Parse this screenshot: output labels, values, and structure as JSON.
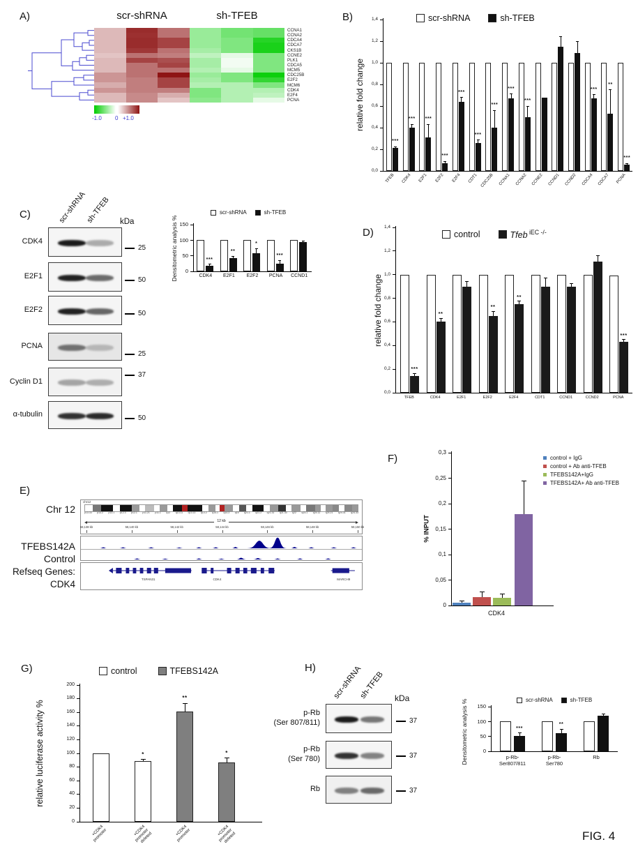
{
  "figure_label": "FIG. 4",
  "panel_a": {
    "label": "A)",
    "col_group_labels": [
      "scr-shRNA",
      "sh-TFEB"
    ],
    "colorbar_labels": [
      "-1.0",
      "0",
      "+1.0"
    ],
    "chart_data": {
      "type": "heatmap",
      "rows": [
        "CCNA1",
        "CCNA2",
        "CDCA4",
        "CDCA7",
        "CKS1B",
        "CCNE2",
        "PLK1",
        "CDCA5",
        "MCM5",
        "CDC25B",
        "E2F2",
        "MCM6",
        "CDK4",
        "E2F4",
        "PCNA"
      ],
      "columns": [
        "scr-shRNA 1",
        "scr-shRNA 2",
        "scr-shRNA 3",
        "sh-TFEB 1",
        "sh-TFEB 2",
        "sh-TFEB 3"
      ],
      "values": [
        [
          0.3,
          0.9,
          0.6,
          -0.4,
          -0.55,
          -0.6
        ],
        [
          0.3,
          0.88,
          0.6,
          -0.4,
          -0.55,
          -0.6
        ],
        [
          0.3,
          0.9,
          0.8,
          -0.4,
          -0.5,
          -0.85
        ],
        [
          0.3,
          0.9,
          0.8,
          -0.4,
          -0.5,
          -0.9
        ],
        [
          0.3,
          0.85,
          0.6,
          -0.35,
          -0.5,
          -0.9
        ],
        [
          0.25,
          0.6,
          0.55,
          -0.25,
          -0.1,
          -0.5
        ],
        [
          0.3,
          0.8,
          0.75,
          -0.35,
          -0.05,
          -0.5
        ],
        [
          0.3,
          0.6,
          0.8,
          -0.35,
          -0.05,
          -0.5
        ],
        [
          0.3,
          0.6,
          0.6,
          -0.3,
          -0.1,
          -0.5
        ],
        [
          0.45,
          0.6,
          1.0,
          -0.4,
          -0.5,
          -0.95
        ],
        [
          0.45,
          0.55,
          0.8,
          -0.35,
          -0.5,
          -0.8
        ],
        [
          0.35,
          0.55,
          0.8,
          -0.3,
          -0.3,
          -0.5
        ],
        [
          0.45,
          0.55,
          0.55,
          -0.5,
          -0.3,
          -0.3
        ],
        [
          0.3,
          0.5,
          0.35,
          -0.5,
          -0.3,
          -0.25
        ],
        [
          0.3,
          0.5,
          0.25,
          -0.45,
          -0.3,
          -0.1
        ]
      ],
      "vmin": -1.0,
      "vmax": 1.0,
      "neg_color": "#00cc00",
      "pos_color": "#8e1414"
    }
  },
  "panel_b": {
    "label": "B)",
    "legend": [
      {
        "label": "scr-shRNA",
        "fill": "#ffffff"
      },
      {
        "label": "sh-TFEB",
        "fill": "#111111"
      }
    ],
    "chart_data": {
      "type": "bar",
      "ylabel": "relative fold change",
      "ymax": 1.4,
      "ytick_labels": [
        "0,0",
        "0,2",
        "0,4",
        "0,6",
        "0,8",
        "1,0",
        "1,2",
        "1,4"
      ],
      "categories": [
        "TFEB",
        "CDK4",
        "E2F1",
        "E2F2",
        "E2F4",
        "CDT1",
        "CDC25B",
        "CCNA1",
        "CCNA2",
        "CCNE2",
        "CCND1",
        "CCND2",
        "CDCA4",
        "CDCA7",
        "PCNA"
      ],
      "series": [
        {
          "name": "scr-shRNA",
          "fill": "#ffffff",
          "values": [
            1,
            1,
            1,
            1,
            1,
            1,
            1,
            1,
            1,
            1,
            1,
            1,
            1,
            1,
            1
          ]
        },
        {
          "name": "sh-TFEB",
          "fill": "#111111",
          "values": [
            0.21,
            0.4,
            0.31,
            0.07,
            0.64,
            0.26,
            0.4,
            0.67,
            0.5,
            0.68,
            1.15,
            1.09,
            0.67,
            0.53,
            0.06
          ],
          "errors": [
            0.015,
            0.03,
            0.12,
            0.02,
            0.04,
            0.025,
            0.16,
            0.04,
            0.1,
            0,
            0.09,
            0.11,
            0.035,
            0.22,
            0.01
          ],
          "sig": [
            "***",
            "***",
            "***",
            "***",
            "***",
            "***",
            "***",
            "***",
            "***",
            "",
            "",
            "",
            "***",
            "**",
            "***"
          ]
        }
      ]
    }
  },
  "panel_c": {
    "label": "C)",
    "kda_label": "kDa",
    "lane_labels": [
      "scr-shRNA",
      "sh-TFEB"
    ],
    "blots": [
      {
        "name_lines": [
          "CDK4"
        ],
        "marker": "25",
        "bands": [
          0.95,
          0.32
        ],
        "bg": "#f5f5f5"
      },
      {
        "name_lines": [
          "E2F1"
        ],
        "marker": "50",
        "bands": [
          0.92,
          0.6
        ],
        "bg": "#f5f5f5"
      },
      {
        "name_lines": [
          "E2F2"
        ],
        "marker": "50",
        "bands": [
          0.92,
          0.62
        ],
        "bg": "#f5f5f5"
      },
      {
        "name_lines": [
          "PCNA"
        ],
        "marker": "25",
        "bands": [
          0.55,
          0.22
        ],
        "bg": "#e6e6e6"
      },
      {
        "name_lines": [
          "Cyclin D1"
        ],
        "marker": "37",
        "bands": [
          0.34,
          0.3
        ],
        "bg": "#f2f2f2"
      },
      {
        "name_lines": [
          "α-tubulin"
        ],
        "marker": "50",
        "bands": [
          0.85,
          0.88
        ],
        "bg": "#f5f5f5"
      }
    ],
    "densitometry": {
      "legend": [
        {
          "label": "scr-shRNA",
          "fill": "#ffffff"
        },
        {
          "label": "sh-TFEB",
          "fill": "#111111"
        }
      ],
      "chart_data": {
        "type": "bar",
        "ylabel": "Densitometric analysis %",
        "ymax": 150,
        "ytick_labels": [
          "0",
          "50",
          "100",
          "150"
        ],
        "categories": [
          "CDK4",
          "E2F1",
          "E2F2",
          "PCNA",
          "CCND1"
        ],
        "series": [
          {
            "name": "scr-shRNA",
            "fill": "#ffffff",
            "values": [
              100,
              100,
              100,
              100,
              100
            ]
          },
          {
            "name": "sh-TFEB",
            "fill": "#111111",
            "values": [
              18,
              42,
              58,
              25,
              93
            ],
            "errors": [
              5,
              7,
              15,
              10,
              4
            ],
            "sig": [
              "***",
              "**",
              "*",
              "***",
              ""
            ]
          }
        ]
      }
    }
  },
  "panel_d": {
    "label": "D)",
    "legend": [
      {
        "label": "control",
        "fill": "#ffffff"
      },
      {
        "label_italic": "Tfeb",
        "label_sup": "iEC -/-",
        "fill": "#1a1a1a"
      }
    ],
    "chart_data": {
      "type": "bar",
      "ylabel": "relative fold change",
      "ymax": 1.4,
      "ytick_labels": [
        "0,0",
        "0,2",
        "0,4",
        "0,6",
        "0,8",
        "1,0",
        "1,2",
        "1,4"
      ],
      "categories": [
        "TFEB",
        "CDK4",
        "E2F1",
        "E2F2",
        "E2F4",
        "CDT1",
        "CCND1",
        "CCND2",
        "PCNA"
      ],
      "series": [
        {
          "name": "control",
          "fill": "#ffffff",
          "values": [
            1,
            1,
            1,
            1,
            1,
            1,
            1,
            1,
            0.99
          ]
        },
        {
          "name": "Tfeb iEC -/-",
          "fill": "#1a1a1a",
          "values": [
            0.14,
            0.6,
            0.9,
            0.65,
            0.75,
            0.9,
            0.9,
            1.11,
            0.43
          ],
          "errors": [
            0.025,
            0.03,
            0.04,
            0.04,
            0.025,
            0.07,
            0.025,
            0.05,
            0.02
          ],
          "sig": [
            "***",
            "**",
            "",
            "**",
            "**",
            "",
            "",
            "",
            "***"
          ]
        }
      ]
    }
  },
  "panel_e": {
    "label": "E)",
    "left_labels": [
      "Chr 12",
      "TFEBS142A",
      "Control",
      "Refseq Genes:",
      "CDK4"
    ],
    "browser": {
      "chrom_label": "chr12",
      "scale_label": "12 kb",
      "ruler_ticks": [
        "58,138 kb",
        "58,140 kb",
        "58,142 kb",
        "58,144 kb",
        "58,146 kb",
        "58,148 kb",
        "58,150 kb"
      ],
      "band_labels": [
        "p13.33",
        "p13.2",
        "p13.1",
        "p12.3",
        "p12.1",
        "p11.21",
        "p11.1",
        "q12",
        "q13.11",
        "q13.13",
        "q13.2",
        "q14.1",
        "q14.3",
        "q15",
        "q21.1",
        "q21.2",
        "q21.31",
        "q21.33",
        "q22",
        "q23.1",
        "q24.11",
        "q24.21",
        "q24.31",
        "q24.33"
      ],
      "genes": [
        {
          "name": "TSPAN31"
        },
        {
          "name": "CDK4"
        },
        {
          "name": "MARCH9"
        }
      ],
      "track_color": "#00008b"
    }
  },
  "panel_f": {
    "label": "F)",
    "chart_data": {
      "type": "bar",
      "ylabel": "% INPUT",
      "ymax": 0.3,
      "ytick_labels": [
        "0",
        "0,05",
        "0,1",
        "0,15",
        "0,2",
        "0,25",
        "0,3"
      ],
      "categories": [
        "CDK4"
      ],
      "series": [
        {
          "name": "control + IgG",
          "fill": "#4f81bd",
          "values": [
            0.005
          ],
          "errors": [
            0.004
          ]
        },
        {
          "name": "control + Ab anti-TFEB",
          "fill": "#c0504d",
          "values": [
            0.017
          ],
          "errors": [
            0.01
          ]
        },
        {
          "name": "TFEBS142A+IgG",
          "fill": "#9bbb59",
          "values": [
            0.015
          ],
          "errors": [
            0.008
          ]
        },
        {
          "name": "TFEBS142A+ Ab anti-TFEB",
          "fill": "#8064a2",
          "values": [
            0.18
          ],
          "errors": [
            0.065
          ]
        }
      ]
    }
  },
  "panel_g": {
    "label": "G)",
    "legend": [
      {
        "label": "control",
        "fill": "#ffffff"
      },
      {
        "label": "TFEBS142A",
        "fill": "#7f7f7f"
      }
    ],
    "chart_data": {
      "type": "bar",
      "ylabel": "relative luciferase activity %",
      "ymax": 200,
      "ytick_labels": [
        "0",
        "20",
        "40",
        "60",
        "80",
        "100",
        "120",
        "140",
        "160",
        "180",
        "200"
      ],
      "categories": [
        "+CDK4\npromoter",
        "+CDK4\npromoter\ndeleted",
        "+CDK4\npromoter",
        "+CDK4\npromoter\ndeleted"
      ],
      "series": [
        {
          "name": "luciferase",
          "fills": [
            "#ffffff",
            "#ffffff",
            "#7f7f7f",
            "#7f7f7f"
          ],
          "values": [
            100,
            89,
            161,
            87
          ],
          "errors": [
            0,
            2,
            12,
            6
          ],
          "sig": [
            "",
            "*",
            "**",
            "*"
          ]
        }
      ]
    }
  },
  "panel_h": {
    "label": "H)",
    "kda_label": "kDa",
    "lane_labels": [
      "scr-shRNA",
      "sh-TFEB"
    ],
    "blots": [
      {
        "name_lines": [
          "p-Rb",
          "(Ser 807/811)"
        ],
        "marker": "37",
        "bands": [
          0.95,
          0.55
        ],
        "bg": "#f5f5f5"
      },
      {
        "name_lines": [
          "p-Rb",
          "(Ser 780)"
        ],
        "marker": "37",
        "bands": [
          0.85,
          0.5
        ],
        "bg": "#f5f5f5"
      },
      {
        "name_lines": [
          "Rb"
        ],
        "marker": "37",
        "bands": [
          0.5,
          0.6
        ],
        "bg": "#f0f0f0"
      }
    ],
    "densitometry": {
      "legend": [
        {
          "label": "scr-shRNA",
          "fill": "#ffffff"
        },
        {
          "label": "sh-TFEB",
          "fill": "#111111"
        }
      ],
      "chart_data": {
        "type": "bar",
        "ylabel": "Densitometric analysis %",
        "ymax": 150,
        "ytick_labels": [
          "0",
          "50",
          "100",
          "150"
        ],
        "categories": [
          "p-Rb-\nSer807/811",
          "p-Rb-\nSer780",
          "Rb"
        ],
        "series": [
          {
            "name": "scr-shRNA",
            "fill": "#ffffff",
            "values": [
              100,
              100,
              100
            ]
          },
          {
            "name": "sh-TFEB",
            "fill": "#111111",
            "values": [
              51,
              60,
              120
            ],
            "errors": [
              10,
              14,
              6
            ],
            "sig": [
              "***",
              "**",
              ""
            ]
          }
        ]
      }
    }
  }
}
